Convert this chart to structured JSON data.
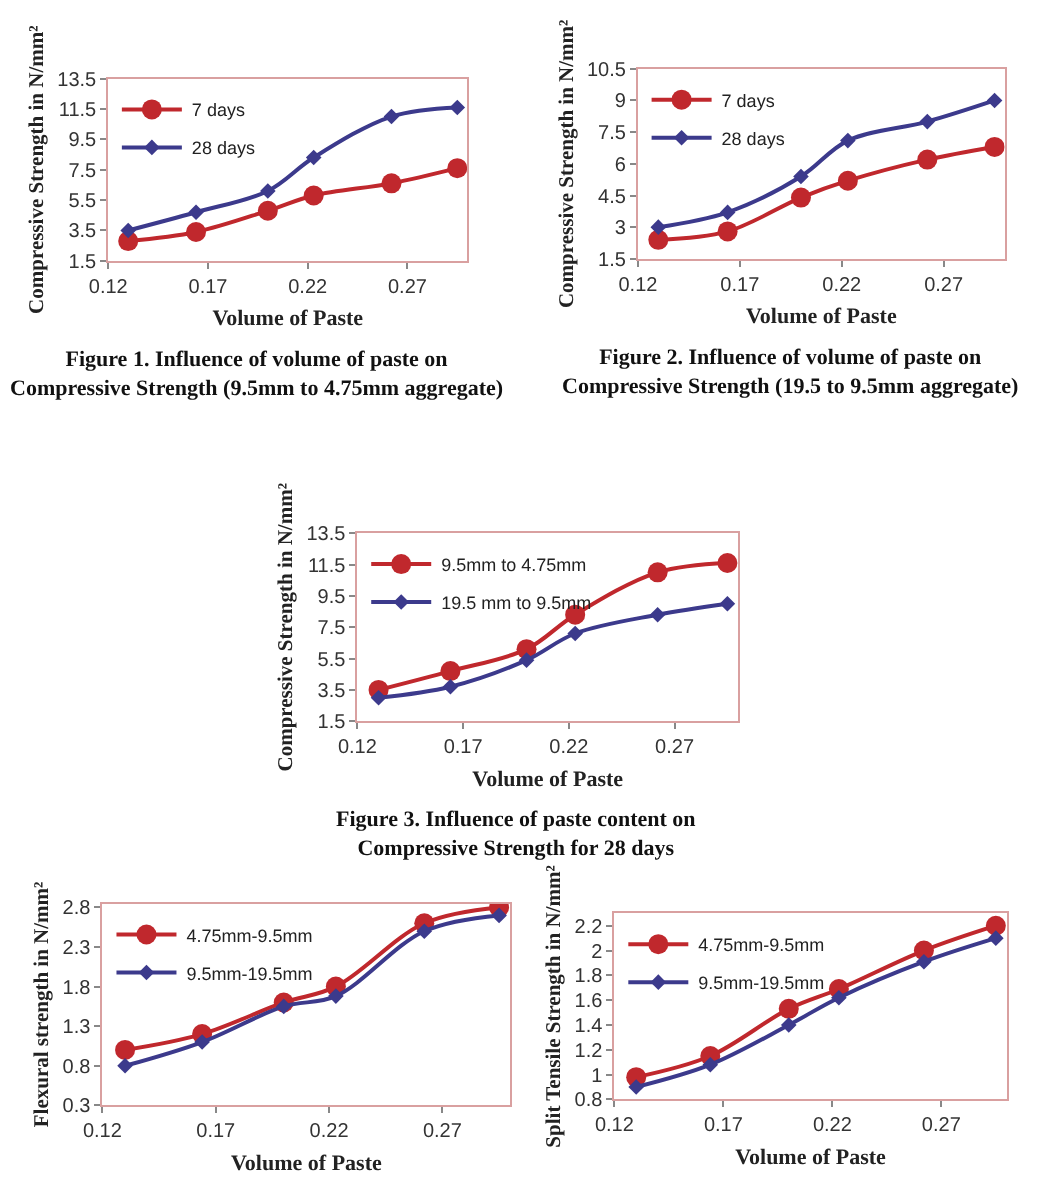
{
  "chart_data": [
    {
      "type": "line",
      "x": [
        0.13,
        0.164,
        0.2,
        0.223,
        0.262,
        0.295
      ],
      "xlim": [
        0.12,
        0.3
      ],
      "xticks": [
        0.12,
        0.17,
        0.22,
        0.27
      ],
      "ylim": [
        1.5,
        13.5
      ],
      "yticks": [
        1.5,
        3.5,
        5.5,
        7.5,
        9.5,
        11.5,
        13.5
      ],
      "xlabel": "Volume of Paste",
      "ylabel": "Compressive Strength in N/mm²",
      "legend": "top left",
      "grid": false,
      "series": [
        {
          "name": "7 days",
          "color": "#c0282d",
          "marker": "circle",
          "values": [
            2.8,
            3.4,
            4.8,
            5.8,
            6.6,
            7.6
          ]
        },
        {
          "name": "28 days",
          "color": "#3c3a8c",
          "marker": "diamond",
          "values": [
            3.5,
            4.7,
            6.1,
            8.3,
            11.0,
            11.6
          ]
        }
      ],
      "annotations": [
        "Figure 1. Influence of volume of paste on Compressive Strength (9.5mm to 4.75mm aggregate)"
      ]
    },
    {
      "type": "line",
      "x": [
        0.13,
        0.164,
        0.2,
        0.223,
        0.262,
        0.295
      ],
      "xlim": [
        0.12,
        0.3
      ],
      "xticks": [
        0.12,
        0.17,
        0.22,
        0.27
      ],
      "ylim": [
        1.5,
        10.5
      ],
      "yticks": [
        1.5,
        3,
        4.5,
        6,
        7.5,
        9,
        10.5
      ],
      "xlabel": "Volume of Paste",
      "ylabel": "Compressive Strength in N/mm²",
      "legend": "top left",
      "grid": false,
      "series": [
        {
          "name": "7 days",
          "color": "#c0282d",
          "marker": "circle",
          "values": [
            2.4,
            2.8,
            4.4,
            5.2,
            6.2,
            6.8
          ]
        },
        {
          "name": "28 days",
          "color": "#3c3a8c",
          "marker": "diamond",
          "values": [
            3.0,
            3.7,
            5.4,
            7.1,
            8.0,
            9.0
          ]
        }
      ],
      "annotations": [
        "Figure 2. Influence of volume of paste on Compressive Strength (19.5 to 9.5mm aggregate)"
      ]
    },
    {
      "type": "line",
      "x": [
        0.13,
        0.164,
        0.2,
        0.223,
        0.262,
        0.295
      ],
      "xlim": [
        0.12,
        0.3
      ],
      "xticks": [
        0.12,
        0.17,
        0.22,
        0.27
      ],
      "ylim": [
        1.5,
        13.5
      ],
      "yticks": [
        1.5,
        3.5,
        5.5,
        7.5,
        9.5,
        11.5,
        13.5
      ],
      "xlabel": "Volume of Paste",
      "ylabel": "Compressive Strength in N/mm²",
      "legend": "top left",
      "grid": false,
      "series": [
        {
          "name": "9.5mm to 4.75mm",
          "color": "#c0282d",
          "marker": "circle",
          "values": [
            3.5,
            4.7,
            6.1,
            8.3,
            11.0,
            11.6
          ]
        },
        {
          "name": "19.5 mm to 9.5mm",
          "color": "#3c3a8c",
          "marker": "diamond",
          "values": [
            3.0,
            3.7,
            5.4,
            7.1,
            8.3,
            9.0
          ]
        }
      ],
      "annotations": [
        "Figure 3. Influence of paste content on Compressive Strength for 28 days"
      ]
    },
    {
      "type": "line",
      "x": [
        0.13,
        0.164,
        0.2,
        0.223,
        0.262,
        0.295
      ],
      "xlim": [
        0.12,
        0.3
      ],
      "xticks": [
        0.12,
        0.17,
        0.22,
        0.27
      ],
      "ylim": [
        0.3,
        2.85
      ],
      "yticks": [
        0.3,
        0.8,
        1.3,
        1.8,
        2.3,
        2.8
      ],
      "xlabel": "Volume of Paste",
      "ylabel": "Flexural strength in N/mm²",
      "legend": "top left",
      "grid": false,
      "series": [
        {
          "name": "4.75mm-9.5mm",
          "color": "#c0282d",
          "marker": "circle",
          "values": [
            1.0,
            1.2,
            1.6,
            1.8,
            2.6,
            2.8
          ]
        },
        {
          "name": "9.5mm-19.5mm",
          "color": "#3c3a8c",
          "marker": "diamond",
          "values": [
            0.8,
            1.1,
            1.55,
            1.68,
            2.5,
            2.7
          ]
        }
      ]
    },
    {
      "type": "line",
      "x": [
        0.13,
        0.164,
        0.2,
        0.223,
        0.262,
        0.295
      ],
      "xlim": [
        0.12,
        0.3
      ],
      "xticks": [
        0.12,
        0.17,
        0.22,
        0.27
      ],
      "ylim": [
        0.8,
        2.3
      ],
      "yticks": [
        0.8,
        1,
        1.2,
        1.4,
        1.6,
        1.8,
        2,
        2.2
      ],
      "xlabel": "Volume of Paste",
      "ylabel": "Split Tensile Strength in N/mm²",
      "legend": "top left",
      "grid": false,
      "series": [
        {
          "name": "4.75mm-9.5mm",
          "color": "#c0282d",
          "marker": "circle",
          "values": [
            0.98,
            1.15,
            1.53,
            1.69,
            2.0,
            2.2
          ]
        },
        {
          "name": "9.5mm-19.5mm",
          "color": "#3c3a8c",
          "marker": "diamond",
          "values": [
            0.9,
            1.08,
            1.4,
            1.62,
            1.91,
            2.1
          ]
        }
      ]
    }
  ]
}
